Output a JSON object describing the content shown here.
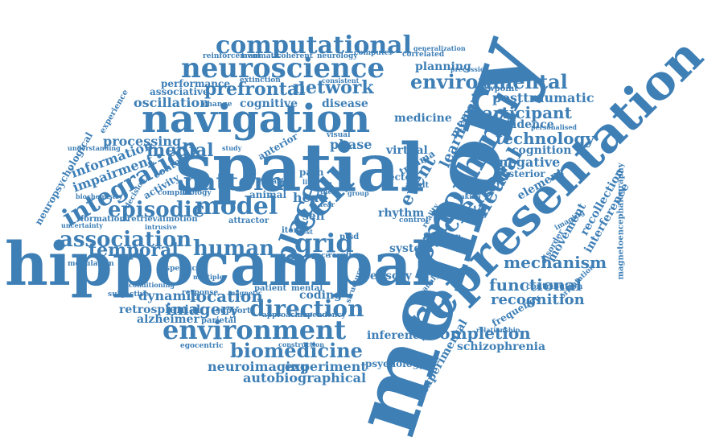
{
  "accent_color": "#3e7fb6",
  "words": [
    "memory",
    "representation",
    "spatial",
    "hippocampal",
    "navigation",
    "cell",
    "entorhinal",
    "neuroscience",
    "computational",
    "environment",
    "environmental",
    "direction",
    "grid",
    "place",
    "model",
    "integration",
    "episodic",
    "pattern",
    "association",
    "prefrontal",
    "network",
    "neural",
    "science",
    "biomedicine",
    "human",
    "temporal",
    "mechanism",
    "participant",
    "technology",
    "functional",
    "completion",
    "recognition",
    "location",
    "imagery",
    "autobiographical",
    "neuroimaging",
    "experiment",
    "posttraumatic",
    "event",
    "learning",
    "medial",
    "dynamic",
    "retrosplenial",
    "alzheimer",
    "oscillation",
    "cognitive",
    "disease",
    "processing",
    "information",
    "impairment",
    "phase",
    "virtual",
    "memories",
    "movement",
    "interference",
    "recollection",
    "schizophrenia",
    "experimental",
    "inference",
    "magnetoencephalography",
    "neuropsychological",
    "coding",
    "system",
    "sensory",
    "psychology",
    "rhythm",
    "head",
    "self",
    "planning",
    "medicine",
    "performance",
    "associative",
    "extinction",
    "reinforcement",
    "traumatic",
    "coherent",
    "neurology",
    "computer",
    "correlated",
    "experience",
    "understanding",
    "uncertainty",
    "formation",
    "modulation",
    "subjective",
    "egocentric",
    "cognition",
    "evidence",
    "negative",
    "element",
    "posterior",
    "frequency",
    "contribution",
    "orientation",
    "imaging",
    "animal",
    "anterior",
    "activity",
    "context",
    "vector",
    "trauma",
    "adult",
    "item",
    "mental",
    "patient",
    "support",
    "parietal",
    "approaches",
    "dependency",
    "construction",
    "attractor",
    "retrieval",
    "motion",
    "complex",
    "biology",
    "intrusive",
    "specific",
    "response",
    "magnetic",
    "analysis",
    "reality",
    "function",
    "disorder",
    "visual",
    "path",
    "test",
    "space",
    "result",
    "ptsd",
    "viewpoint",
    "change",
    "consistent",
    "precession",
    "generalization",
    "personalised",
    "task",
    "life",
    "fear",
    "control",
    "moving",
    "making",
    "relationship",
    "structure",
    "decision",
    "study",
    "biochemistry",
    "multiple",
    "conditioning",
    "group",
    "theta"
  ]
}
